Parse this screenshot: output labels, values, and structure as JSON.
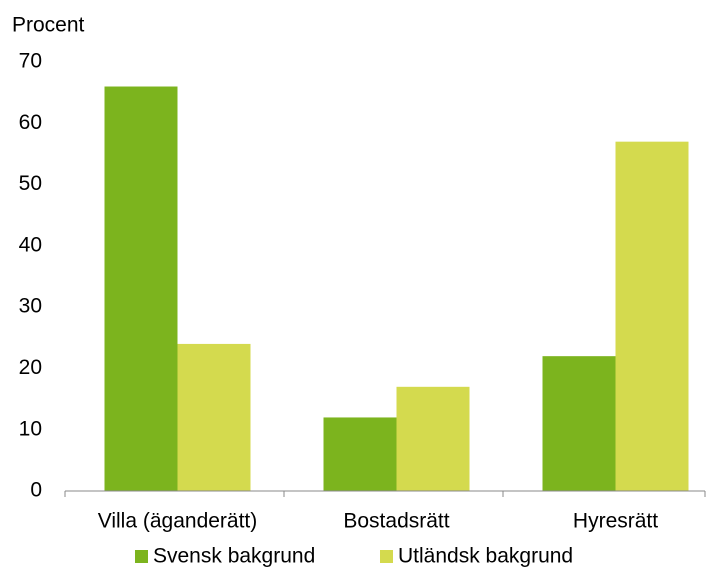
{
  "chart_data": {
    "type": "bar",
    "y_label": "Procent",
    "categories": [
      "Villa (äganderätt)",
      "Bostadsrätt",
      "Hyresrätt"
    ],
    "series": [
      {
        "name": "Svensk bakgrund",
        "color": "#7cb41e",
        "values": [
          66,
          12,
          22
        ]
      },
      {
        "name": "Utländsk bakgrund",
        "color": "#d4da4e",
        "values": [
          24,
          17,
          57
        ]
      }
    ],
    "ylim": [
      0,
      70
    ],
    "yticks": [
      0,
      10,
      20,
      30,
      40,
      50,
      60,
      70
    ],
    "grid": false,
    "legend": "bottom"
  }
}
